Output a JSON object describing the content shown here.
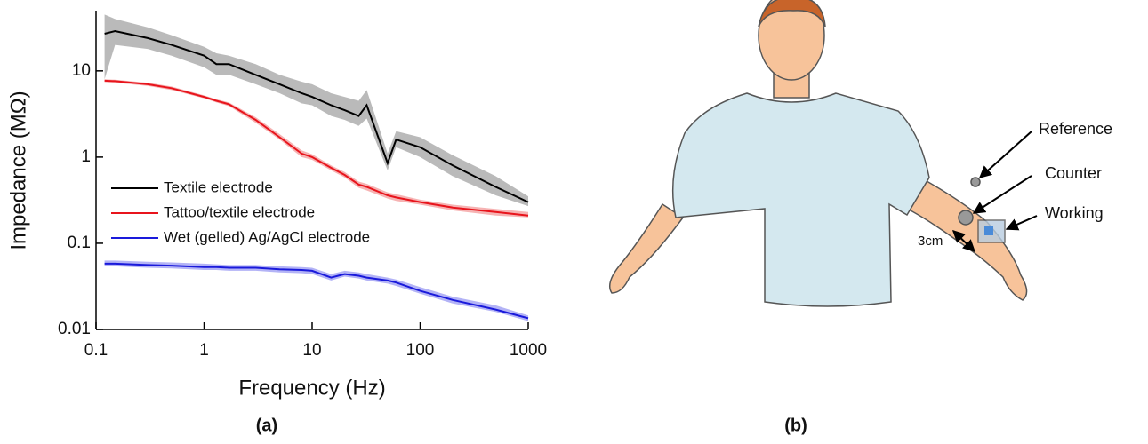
{
  "chart_data": {
    "type": "line",
    "xlabel": "Frequency (Hz)",
    "ylabel": "Impedance (MΩ)",
    "log_x": true,
    "log_y": true,
    "xlim": [
      0.1,
      1000
    ],
    "xticks": [
      0.1,
      1,
      10,
      100,
      1000
    ],
    "ylim": [
      0.01,
      50
    ],
    "yticks": [
      0.01,
      0.1,
      1,
      10
    ],
    "legend": "center-left",
    "x": [
      0.12,
      0.15,
      0.3,
      0.5,
      1,
      1.3,
      1.7,
      3,
      5,
      8,
      10,
      15,
      20,
      27,
      32,
      50,
      60,
      100,
      200,
      500,
      1000
    ],
    "series": [
      {
        "name": "Textile electrode",
        "color": "#000000",
        "band_color": "#8c8c8c",
        "values": [
          27,
          29,
          24,
          20,
          15,
          12,
          12,
          9,
          7,
          5.5,
          5,
          4,
          3.5,
          3,
          4,
          0.85,
          1.6,
          1.3,
          0.8,
          0.45,
          0.3
        ],
        "upper": [
          45,
          40,
          32,
          26,
          19,
          16,
          15,
          12,
          9,
          7.5,
          7,
          5.5,
          5,
          4.5,
          6,
          1.1,
          2,
          1.7,
          1.05,
          0.6,
          0.35
        ],
        "lower": [
          8,
          20,
          18,
          15,
          11,
          9,
          9,
          7,
          5.5,
          4.2,
          4,
          3,
          2.7,
          2.3,
          2.8,
          0.7,
          1.3,
          1,
          0.6,
          0.36,
          0.27
        ]
      },
      {
        "name": "Tattoo/textile electrode",
        "color": "#e8141c",
        "band_color": "#f08080",
        "values": [
          7.7,
          7.6,
          7,
          6.3,
          5,
          4.5,
          4.1,
          2.7,
          1.7,
          1.1,
          1,
          0.75,
          0.62,
          0.48,
          0.45,
          0.36,
          0.34,
          0.3,
          0.26,
          0.23,
          0.21
        ],
        "upper": [
          8,
          7.9,
          7.3,
          6.6,
          5.2,
          4.7,
          4.3,
          2.9,
          1.85,
          1.2,
          1.08,
          0.8,
          0.67,
          0.52,
          0.49,
          0.39,
          0.37,
          0.32,
          0.28,
          0.25,
          0.23
        ],
        "lower": [
          7.4,
          7.3,
          6.7,
          6,
          4.8,
          4.3,
          3.9,
          2.5,
          1.6,
          1.0,
          0.93,
          0.7,
          0.58,
          0.44,
          0.41,
          0.33,
          0.31,
          0.28,
          0.24,
          0.21,
          0.2
        ]
      },
      {
        "name": "Wet (gelled) Ag/AgCl electrode",
        "color": "#1a1adb",
        "band_color": "#8080f0",
        "values": [
          0.058,
          0.058,
          0.056,
          0.055,
          0.053,
          0.053,
          0.052,
          0.052,
          0.05,
          0.049,
          0.048,
          0.04,
          0.044,
          0.042,
          0.04,
          0.037,
          0.035,
          0.028,
          0.022,
          0.017,
          0.0135
        ],
        "upper": [
          0.063,
          0.063,
          0.061,
          0.06,
          0.058,
          0.057,
          0.056,
          0.056,
          0.054,
          0.053,
          0.052,
          0.044,
          0.048,
          0.046,
          0.044,
          0.04,
          0.038,
          0.031,
          0.024,
          0.019,
          0.0145
        ],
        "lower": [
          0.054,
          0.054,
          0.052,
          0.051,
          0.049,
          0.049,
          0.048,
          0.048,
          0.046,
          0.045,
          0.044,
          0.037,
          0.041,
          0.039,
          0.037,
          0.034,
          0.032,
          0.026,
          0.02,
          0.016,
          0.0125
        ]
      }
    ]
  },
  "figure": {
    "caption_a": "(a)",
    "caption_b": "(b)"
  },
  "diagram": {
    "reference": "Reference",
    "counter": "Counter",
    "working": "Working",
    "distance": "3cm"
  }
}
